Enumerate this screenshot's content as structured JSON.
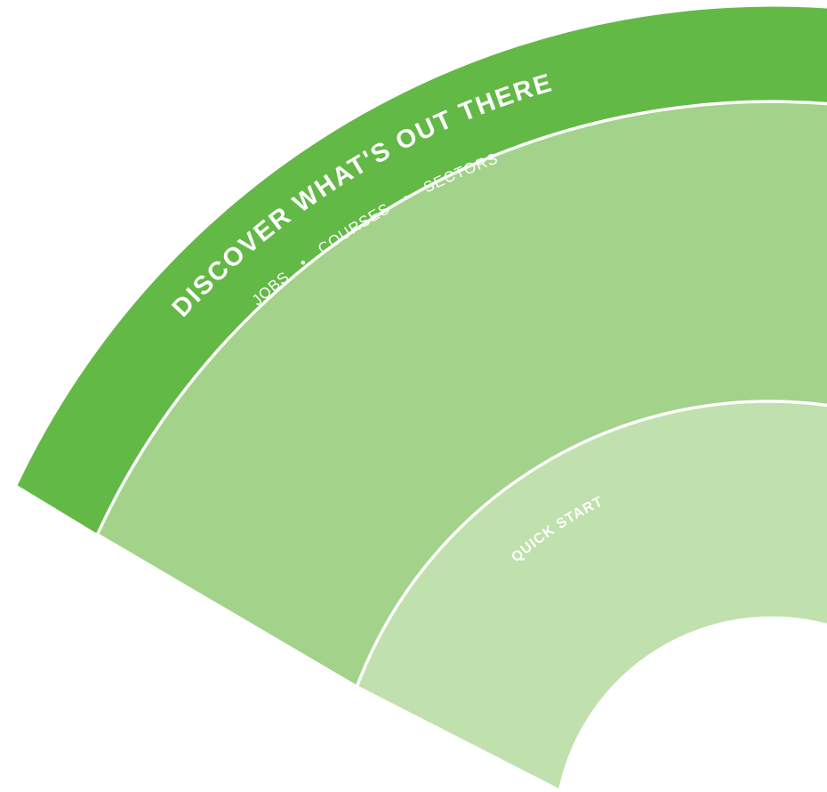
{
  "outer_band": {
    "title": "DISCOVER WHAT'S OUT THERE",
    "items": [
      "JOBS",
      "COURSES",
      "SECTORS"
    ],
    "separator": "•"
  },
  "inner_band": {
    "label": "QUICK START"
  },
  "colors": {
    "outer_band": "#62b946",
    "middle_band": "#a3d28b",
    "inner_band": "#c0e0ad",
    "divider": "#ffffff",
    "text": "#ffffff"
  }
}
